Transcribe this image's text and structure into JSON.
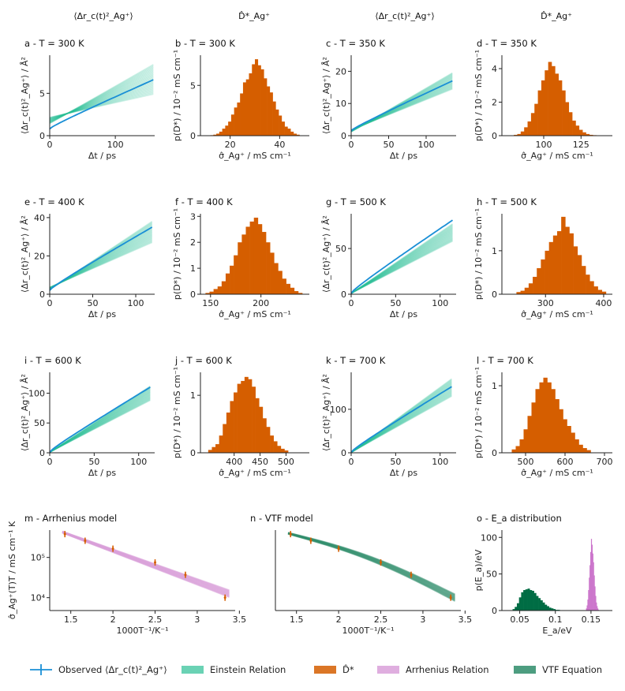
{
  "colors": {
    "einstein": "#2bbf94",
    "observed": "#1a8fd6",
    "hist": "#d55e00",
    "arrhenius": "#d9a0d9",
    "vtf": "#2e8c6a",
    "vtf_hist": "#006d44",
    "ea_arr": "#cc77cc"
  },
  "column_headers": [
    "⟨Δr_c(t)²_Ag⁺⟩",
    "D̂*_Ag⁺",
    "⟨Δr_c(t)²_Ag⁺⟩",
    "D̂*_Ag⁺"
  ],
  "legend": [
    {
      "key": "observed",
      "label": "Observed ⟨Δr_c(t)²_Ag⁺⟩"
    },
    {
      "key": "einstein",
      "label": "Einstein Relation"
    },
    {
      "key": "hist",
      "label": "D̂*"
    },
    {
      "key": "arrhenius",
      "label": "Arrhenius Relation"
    },
    {
      "key": "vtf",
      "label": "VTF Equation"
    }
  ],
  "chart_data": [
    {
      "id": "a",
      "type": "line",
      "title": "a - T = 300 K",
      "xlabel": "Δt / ps",
      "ylabel": "⟨Δr_c(t)²_Ag⁺⟩ / Å²",
      "xlim": [
        0,
        160
      ],
      "ylim": [
        0,
        9.5
      ],
      "xticks": [
        0,
        100
      ],
      "yticks": [
        0,
        5
      ],
      "tmax": 158,
      "y0": 0.8,
      "yend": 6.6,
      "fan_lo": 4.9,
      "fan_hi": 8.4,
      "fan_y0": 1.8
    },
    {
      "id": "b",
      "type": "bar",
      "title": "b - T = 300 K",
      "xlabel": "σ̂_Ag⁺ / mS cm⁻¹",
      "ylabel": "p(D*) / 10⁻² mS cm⁻¹",
      "xlim": [
        8,
        52
      ],
      "ylim": [
        0,
        8
      ],
      "xticks": [
        20,
        40
      ],
      "yticks": [
        0,
        5
      ],
      "bin_start": 12,
      "bin_width": 1.2,
      "values": [
        0.05,
        0.1,
        0.2,
        0.4,
        0.7,
        1.0,
        1.4,
        2.1,
        2.8,
        3.3,
        4.2,
        5.3,
        5.6,
        6.2,
        7.1,
        7.6,
        7.0,
        6.6,
        5.7,
        4.9,
        4.3,
        3.4,
        2.6,
        2.0,
        1.4,
        0.9,
        0.7,
        0.4,
        0.2,
        0.1
      ]
    },
    {
      "id": "c",
      "type": "line",
      "title": "c - T = 350 K",
      "xlabel": "Δt / ps",
      "ylabel": "⟨Δr_c(t)²_Ag⁺⟩ / Å²",
      "xlim": [
        0,
        140
      ],
      "ylim": [
        0,
        25
      ],
      "xticks": [
        0,
        50,
        100
      ],
      "yticks": [
        0,
        10,
        20
      ],
      "tmax": 135,
      "y0": 1.5,
      "yend": 17,
      "fan_lo": 14.5,
      "fan_hi": 19.5,
      "fan_y0": 1.5
    },
    {
      "id": "d",
      "type": "bar",
      "title": "d - T = 350 K",
      "xlabel": "σ̂_Ag⁺ / mS cm⁻¹",
      "ylabel": "p(D*) / 10⁻² mS cm⁻¹",
      "xlim": [
        72,
        146
      ],
      "ylim": [
        0,
        4.8
      ],
      "xticks": [
        100,
        125
      ],
      "yticks": [
        0,
        2,
        4
      ],
      "bin_start": 80,
      "bin_width": 2.3,
      "values": [
        0.05,
        0.1,
        0.25,
        0.5,
        0.85,
        1.35,
        1.9,
        2.7,
        3.3,
        3.9,
        4.4,
        4.15,
        3.7,
        3.3,
        2.7,
        2.0,
        1.4,
        0.9,
        0.6,
        0.35,
        0.2,
        0.1,
        0.05,
        0.03
      ]
    },
    {
      "id": "e",
      "type": "line",
      "title": "e - T = 400 K",
      "xlabel": "Δt / ps",
      "ylabel": "⟨Δr_c(t)²_Ag⁺⟩ / Å²",
      "xlim": [
        0,
        122
      ],
      "ylim": [
        0,
        42
      ],
      "xticks": [
        0,
        50,
        100
      ],
      "yticks": [
        0,
        20,
        40
      ],
      "tmax": 119,
      "y0": 2,
      "yend": 35,
      "fan_lo": 27,
      "fan_hi": 38,
      "fan_y0": 3
    },
    {
      "id": "f",
      "type": "bar",
      "title": "f - T = 400 K",
      "xlabel": "σ̂_Ag⁺ / mS cm⁻¹",
      "ylabel": "p(D*) / 10⁻² mS cm⁻¹",
      "xlim": [
        140,
        248
      ],
      "ylim": [
        0,
        3.1
      ],
      "xticks": [
        150,
        200
      ],
      "yticks": [
        0,
        1,
        2,
        3
      ],
      "bin_start": 145,
      "bin_width": 4,
      "values": [
        0.05,
        0.1,
        0.2,
        0.3,
        0.5,
        0.8,
        1.1,
        1.5,
        2.0,
        2.3,
        2.6,
        2.8,
        2.95,
        2.7,
        2.4,
        2.0,
        1.6,
        1.2,
        0.9,
        0.6,
        0.4,
        0.25,
        0.12,
        0.05
      ]
    },
    {
      "id": "g",
      "type": "line",
      "title": "g - T = 500 K",
      "xlabel": "Δt / ps",
      "ylabel": "⟨Δr_c(t)²_Ag⁺⟩ / Å²",
      "xlim": [
        0,
        118
      ],
      "ylim": [
        0,
        88
      ],
      "xticks": [
        0,
        50,
        100
      ],
      "yticks": [
        0,
        50
      ],
      "tmax": 114,
      "y0": 1,
      "yend": 81,
      "fan_lo": 58,
      "fan_hi": 77,
      "fan_y0": 1
    },
    {
      "id": "h",
      "type": "bar",
      "title": "h - T = 500 K",
      "xlabel": "σ̂_Ag⁺ / mS cm⁻¹",
      "ylabel": "p(D*) / 10⁻² mS cm⁻¹",
      "xlim": [
        225,
        415
      ],
      "ylim": [
        0,
        1.85
      ],
      "xticks": [
        300,
        400
      ],
      "yticks": [
        0,
        1
      ],
      "bin_start": 250,
      "bin_width": 7,
      "values": [
        0.05,
        0.08,
        0.15,
        0.25,
        0.4,
        0.6,
        0.8,
        1.0,
        1.2,
        1.35,
        1.45,
        1.78,
        1.55,
        1.4,
        1.1,
        0.9,
        0.65,
        0.45,
        0.3,
        0.18,
        0.1,
        0.06
      ]
    },
    {
      "id": "i",
      "type": "line",
      "title": "i - T = 600 K",
      "xlabel": "Δt / ps",
      "ylabel": "⟨Δr_c(t)²_Ag⁺⟩ / Å²",
      "xlim": [
        0,
        118
      ],
      "ylim": [
        0,
        135
      ],
      "xticks": [
        0,
        50,
        100
      ],
      "yticks": [
        0,
        50,
        100
      ],
      "tmax": 113,
      "y0": 1,
      "yend": 110,
      "fan_lo": 88,
      "fan_hi": 112,
      "fan_y0": 1
    },
    {
      "id": "j",
      "type": "bar",
      "title": "j - T = 600 K",
      "xlabel": "σ̂_Ag⁺ / mS cm⁻¹",
      "ylabel": "p(D*) / 10⁻² mS cm⁻¹",
      "xlim": [
        335,
        545
      ],
      "ylim": [
        0,
        1.4
      ],
      "xticks": [
        400,
        450,
        500
      ],
      "yticks": [
        0,
        1
      ],
      "bin_start": 350,
      "bin_width": 7,
      "values": [
        0.05,
        0.1,
        0.15,
        0.3,
        0.5,
        0.7,
        0.9,
        1.05,
        1.2,
        1.25,
        1.32,
        1.28,
        1.15,
        0.95,
        0.8,
        0.6,
        0.45,
        0.3,
        0.2,
        0.12,
        0.07,
        0.04
      ]
    },
    {
      "id": "k",
      "type": "line",
      "title": "k - T = 700 K",
      "xlabel": "Δt / ps",
      "ylabel": "⟨Δr_c(t)²_Ag⁺⟩ / Å²",
      "xlim": [
        0,
        118
      ],
      "ylim": [
        0,
        185
      ],
      "xticks": [
        0,
        50,
        100
      ],
      "yticks": [
        0,
        100
      ],
      "tmax": 113,
      "y0": 1,
      "yend": 152,
      "fan_lo": 130,
      "fan_hi": 170,
      "fan_y0": 1
    },
    {
      "id": "l",
      "type": "bar",
      "title": "l - T = 700 K",
      "xlabel": "σ̂_Ag⁺ / mS cm⁻¹",
      "ylabel": "p(D*) / 10⁻² mS cm⁻¹",
      "xlim": [
        440,
        720
      ],
      "ylim": [
        0,
        1.2
      ],
      "xticks": [
        500,
        600,
        700
      ],
      "yticks": [
        0,
        1
      ],
      "bin_start": 465,
      "bin_width": 10,
      "values": [
        0.05,
        0.1,
        0.2,
        0.35,
        0.55,
        0.75,
        0.95,
        1.05,
        1.12,
        1.05,
        0.95,
        0.8,
        0.65,
        0.5,
        0.4,
        0.3,
        0.2,
        0.12,
        0.07,
        0.04
      ]
    },
    {
      "id": "m",
      "type": "line",
      "title": "m - Arrhenius model",
      "xlabel": "1000T⁻¹/K⁻¹",
      "ylabel": "σ̂_Ag⁺(T)T / mS cm⁻¹ K",
      "xlim": [
        1.25,
        3.45
      ],
      "ylim_log10": [
        3.68,
        5.68
      ],
      "xticks": [
        1.5,
        2.0,
        2.5,
        3.0,
        3.5
      ],
      "ytick_log10": [
        4,
        5
      ],
      "ytick_labels": [
        "10⁴",
        "10⁵"
      ],
      "x": [
        1.43,
        1.67,
        2.0,
        2.5,
        2.86,
        3.33
      ],
      "y": [
        380000,
        260000,
        165000,
        75000,
        37000,
        10000
      ],
      "fit_x": [
        1.4,
        3.38
      ],
      "fit_log10": [
        5.63,
        4.1
      ]
    },
    {
      "id": "n",
      "type": "line",
      "title": "n - VTF model",
      "xlabel": "1000T⁻¹/K⁻¹",
      "ylabel": "",
      "xlim": [
        1.25,
        3.45
      ],
      "ylim_log10": [
        3.68,
        5.68
      ],
      "xticks": [
        1.5,
        2.0,
        2.5,
        3.0,
        3.5
      ],
      "ytick_log10": [],
      "ytick_labels": [],
      "x": [
        1.43,
        1.67,
        2.0,
        2.5,
        2.86,
        3.33
      ],
      "y": [
        380000,
        260000,
        165000,
        75000,
        37000,
        10000
      ],
      "fit_x": [
        1.4,
        3.38
      ],
      "fit_log10": [
        5.6,
        4.0
      ]
    },
    {
      "id": "o",
      "type": "bar",
      "title": "o - E_a distribution",
      "xlabel": "E_a/eV",
      "ylabel": "p(E_a)/eV",
      "xlim": [
        0.025,
        0.18
      ],
      "ylim": [
        0,
        110
      ],
      "xticks": [
        0.05,
        0.1,
        0.15
      ],
      "yticks": [
        0,
        50,
        100
      ],
      "series": [
        {
          "name": "VTF",
          "bin_start": 0.04,
          "bin_width": 0.003,
          "values": [
            2,
            5,
            10,
            18,
            25,
            28,
            29,
            30,
            28,
            27,
            24,
            20,
            17,
            14,
            11,
            8,
            6,
            4,
            3,
            2,
            1,
            1
          ]
        },
        {
          "name": "Arrhenius",
          "bin_start": 0.143,
          "bin_width": 0.001,
          "values": [
            3,
            7,
            15,
            28,
            45,
            62,
            80,
            98,
            90,
            78,
            66,
            48,
            33,
            20,
            11,
            6,
            3,
            1
          ]
        }
      ]
    }
  ]
}
